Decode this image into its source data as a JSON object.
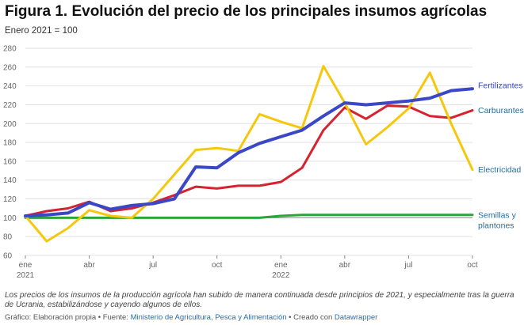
{
  "chart_data": {
    "type": "line",
    "title": "Figura 1. Evolución del precio de los principales insumos agrícolas",
    "subtitle": "Enero 2021 = 100",
    "y_ticks": [
      60,
      80,
      100,
      120,
      140,
      160,
      180,
      200,
      220,
      240,
      260,
      280
    ],
    "ylim": [
      60,
      280
    ],
    "x_range": [
      0,
      21
    ],
    "x_ticks": [
      {
        "pos": 0,
        "label": "ene",
        "label2": "2021"
      },
      {
        "pos": 3,
        "label": "abr",
        "label2": ""
      },
      {
        "pos": 6,
        "label": "jul",
        "label2": ""
      },
      {
        "pos": 9,
        "label": "oct",
        "label2": ""
      },
      {
        "pos": 12,
        "label": "ene",
        "label2": "2022"
      },
      {
        "pos": 15,
        "label": "abr",
        "label2": ""
      },
      {
        "pos": 18,
        "label": "jul",
        "label2": ""
      },
      {
        "pos": 21,
        "label": "oct",
        "label2": ""
      }
    ],
    "grid": true,
    "series": [
      {
        "name": "Semillas y plantones",
        "color": "#2aa53a",
        "x": [
          0,
          1,
          2,
          3,
          4,
          5,
          6,
          7,
          8,
          9,
          10,
          11,
          12,
          13,
          14,
          15,
          16,
          17,
          18,
          19,
          20,
          21
        ],
        "values": [
          100,
          100,
          100,
          100,
          100,
          100,
          100,
          100,
          100,
          100,
          100,
          100,
          102,
          103,
          103,
          103,
          103,
          103,
          103,
          103,
          103,
          103
        ]
      },
      {
        "name": "Carburantes",
        "color": "#d62330",
        "x": [
          0,
          1,
          2,
          3,
          4,
          5,
          6,
          7,
          8,
          9,
          10,
          11,
          12,
          13,
          14,
          15,
          16,
          17,
          18,
          19,
          20,
          21
        ],
        "values": [
          102,
          107,
          110,
          117,
          107,
          110,
          116,
          124,
          133,
          131,
          134,
          134,
          138,
          153,
          193,
          217,
          205,
          219,
          218,
          208,
          206,
          214
        ]
      },
      {
        "name": "Electricidad",
        "color": "#f5c80e",
        "x": [
          0,
          1,
          2,
          3,
          4,
          5,
          6,
          7,
          8,
          9,
          10,
          11,
          12,
          13,
          14,
          15,
          16,
          17,
          18,
          19,
          20,
          21
        ],
        "values": [
          102,
          75,
          89,
          108,
          102,
          100,
          120,
          146,
          172,
          174,
          171,
          210,
          202,
          195,
          261,
          222,
          178,
          196,
          216,
          254,
          200,
          151
        ]
      },
      {
        "name": "Fertilizantes",
        "color": "#3a47c6",
        "x": [
          0,
          1,
          2,
          3,
          4,
          5,
          6,
          7,
          8,
          9,
          10,
          11,
          12,
          13,
          14,
          15,
          16,
          17,
          18,
          19,
          20,
          21
        ],
        "values": [
          102,
          103,
          105,
          116,
          109,
          113,
          115,
          120,
          154,
          153,
          169,
          179,
          186,
          193,
          208,
          222,
          220,
          222,
          224,
          227,
          235,
          237
        ]
      }
    ],
    "end_labels": [
      {
        "series": 3,
        "text": "Fertilizantes",
        "color": "#2e4aa8"
      },
      {
        "series": 1,
        "text": "Carburantes",
        "color": "#1e6fa6"
      },
      {
        "series": 2,
        "text": "Electricidad",
        "color": "#1e6fa6"
      },
      {
        "series": 0,
        "text": "Semillas y",
        "text2": "plantones",
        "color": "#1e6fa6"
      }
    ]
  },
  "note": "Los precios de los insumos de la producción agrícola han subido de manera continuada desde principios de 2021, y especialmente tras la guerra de Ucrania, estabilizándose y cayendo algunos de ellos.",
  "source": {
    "prefix": "Gráfico: Elaboración propia • Fuente: ",
    "link1": "Ministerio de Agricultura, Pesca y Alimentación",
    "middle": " • Creado con ",
    "link2": "Datawrapper"
  }
}
